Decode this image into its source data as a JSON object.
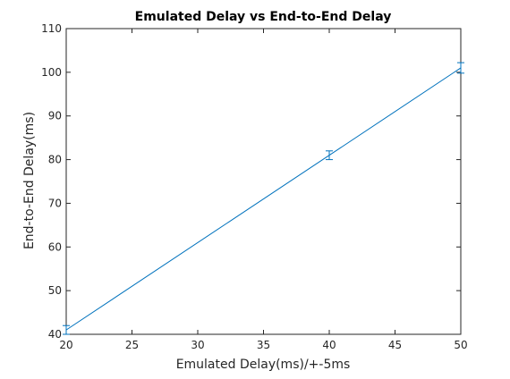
{
  "chart_data": {
    "type": "line",
    "title": "Emulated Delay vs End-to-End Delay",
    "xlabel": "Emulated Delay(ms)/+-5ms",
    "ylabel": "End-to-End Delay(ms)",
    "xlim": [
      20,
      50
    ],
    "ylim": [
      40,
      110
    ],
    "xticks": [
      "20",
      "25",
      "30",
      "35",
      "40",
      "45",
      "50"
    ],
    "yticks": [
      "40",
      "50",
      "60",
      "70",
      "80",
      "90",
      "100",
      "110"
    ],
    "grid": false,
    "series": [
      {
        "x": [
          20,
          40,
          50
        ],
        "y": [
          41,
          81,
          101
        ],
        "error": [
          1,
          1,
          1.2
        ],
        "color": "#0072bd"
      }
    ]
  }
}
